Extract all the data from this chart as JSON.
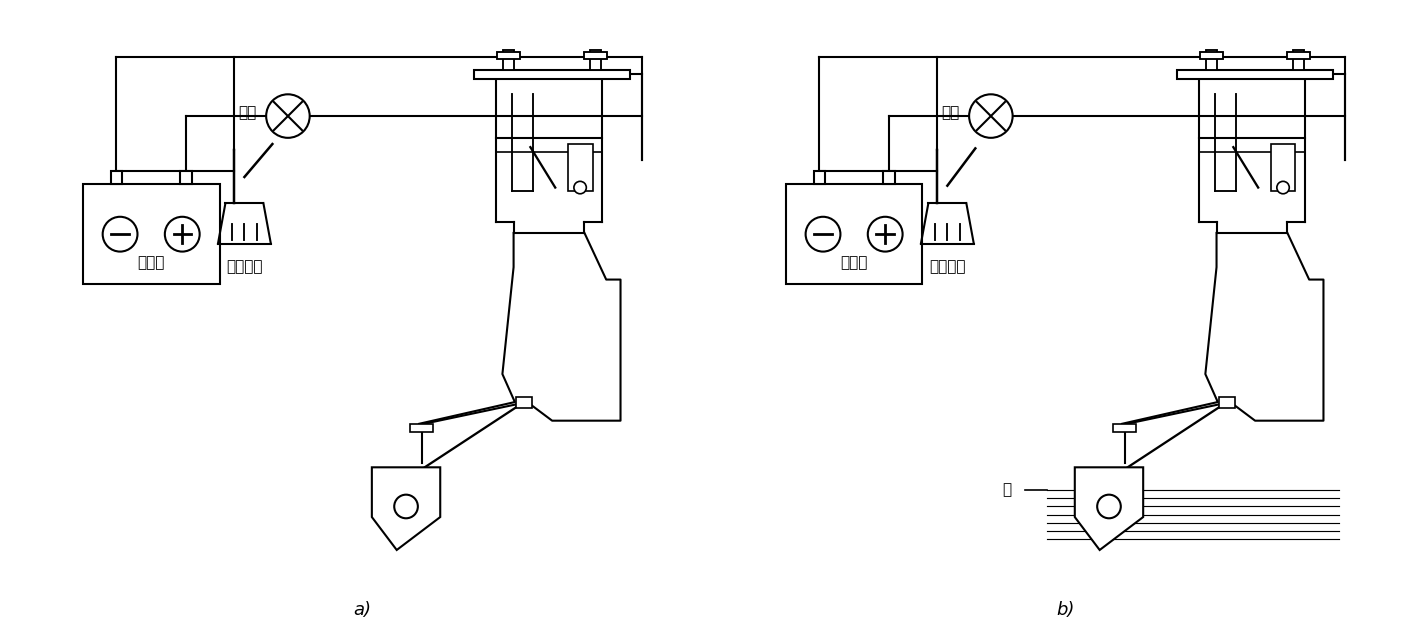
{
  "label_a": "a)",
  "label_b": "b)",
  "text_deng_liang": "灯亮",
  "text_deng_mie": "灯灭",
  "text_battery": "蓄电池",
  "text_switch": "液位开关",
  "text_water": "水",
  "bg_color": "#ffffff",
  "line_color": "#000000",
  "line_width": 1.5,
  "font_size": 11
}
